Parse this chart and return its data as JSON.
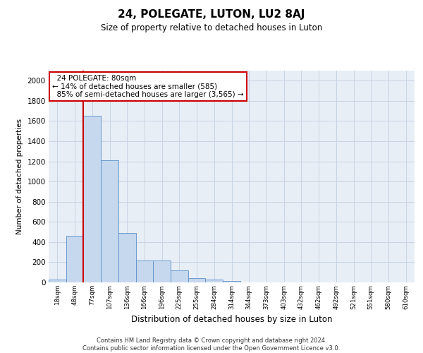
{
  "title": "24, POLEGATE, LUTON, LU2 8AJ",
  "subtitle": "Size of property relative to detached houses in Luton",
  "xlabel": "Distribution of detached houses by size in Luton",
  "ylabel": "Number of detached properties",
  "footer_line1": "Contains HM Land Registry data © Crown copyright and database right 2024.",
  "footer_line2": "Contains public sector information licensed under the Open Government Licence v3.0.",
  "annotation_title": "24 POLEGATE: 80sqm",
  "annotation_line1": "← 14% of detached houses are smaller (585)",
  "annotation_line2": "85% of semi-detached houses are larger (3,565) →",
  "bar_color": "#c5d8ed",
  "bar_edge_color": "#5b8fc9",
  "grid_color": "#c8d4e3",
  "background_color": "#e8eef6",
  "redline_color": "#cc0000",
  "annotation_box_color": "#ffffff",
  "annotation_box_edge": "#cc0000",
  "ylim": [
    0,
    2100
  ],
  "yticks": [
    0,
    200,
    400,
    600,
    800,
    1000,
    1200,
    1400,
    1600,
    1800,
    2000
  ],
  "bin_labels": [
    "18sqm",
    "48sqm",
    "77sqm",
    "107sqm",
    "136sqm",
    "166sqm",
    "196sqm",
    "225sqm",
    "255sqm",
    "284sqm",
    "314sqm",
    "344sqm",
    "373sqm",
    "403sqm",
    "432sqm",
    "462sqm",
    "492sqm",
    "521sqm",
    "551sqm",
    "580sqm",
    "610sqm"
  ],
  "bar_values": [
    30,
    460,
    1650,
    1210,
    490,
    215,
    215,
    120,
    45,
    30,
    15,
    0,
    0,
    0,
    0,
    0,
    0,
    0,
    0,
    0,
    0
  ],
  "redline_bin": 2,
  "smaller_pct": 14,
  "smaller_count": "585",
  "larger_pct": 85,
  "larger_count": "3,565"
}
